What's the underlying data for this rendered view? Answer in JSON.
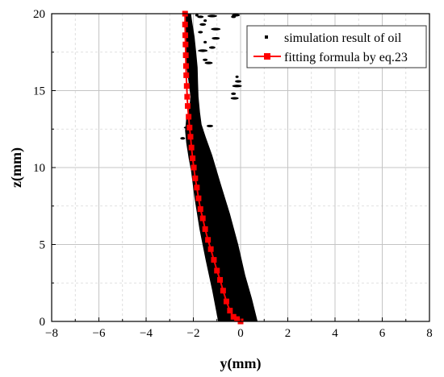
{
  "chart_data": {
    "type": "scatter",
    "xlabel": "y(mm)",
    "ylabel": "z(mm)",
    "xlim": [
      -8,
      8
    ],
    "ylim": [
      0,
      20
    ],
    "xticks": [
      -8,
      -6,
      -4,
      -2,
      0,
      2,
      4,
      6,
      8
    ],
    "yticks": [
      0,
      5,
      10,
      15,
      20
    ],
    "grid": true,
    "legend_position": "top-right",
    "colors": {
      "simulation": "#000000",
      "fitting": "#ff0000"
    },
    "series": [
      {
        "name": "simulation result of oil",
        "style": "filled-region",
        "region": {
          "left": [
            [
              -0.95,
              0.0
            ],
            [
              -1.2,
              2
            ],
            [
              -1.48,
              4
            ],
            [
              -1.74,
              6
            ],
            [
              -1.95,
              8
            ],
            [
              -2.1,
              9.8
            ],
            [
              -2.2,
              10.6
            ],
            [
              -2.3,
              11.6
            ],
            [
              -2.35,
              12.4
            ],
            [
              -2.3,
              13.2
            ],
            [
              -2.18,
              13.8
            ],
            [
              -2.12,
              14.6
            ],
            [
              -2.2,
              15.5
            ],
            [
              -2.28,
              16.5
            ],
            [
              -2.33,
              17.5
            ],
            [
              -2.37,
              18.5
            ],
            [
              -2.38,
              19.5
            ],
            [
              -2.36,
              20
            ]
          ],
          "right": [
            [
              -2.1,
              20
            ],
            [
              -2.05,
              19.5
            ],
            [
              -1.95,
              18.5
            ],
            [
              -1.88,
              17.5
            ],
            [
              -1.82,
              16.5
            ],
            [
              -1.8,
              15.5
            ],
            [
              -1.78,
              14.6
            ],
            [
              -1.72,
              13.6
            ],
            [
              -1.65,
              12.8
            ],
            [
              -1.48,
              12.0
            ],
            [
              -1.2,
              10.8
            ],
            [
              -0.85,
              9.0
            ],
            [
              -0.45,
              7.0
            ],
            [
              -0.1,
              5.0
            ],
            [
              0.2,
              3.0
            ],
            [
              0.48,
              1.5
            ],
            [
              0.72,
              0.0
            ]
          ]
        },
        "blobs": [
          [
            -1.85,
            19.9
          ],
          [
            -1.7,
            19.8
          ],
          [
            -1.2,
            19.85
          ],
          [
            -0.3,
            19.8
          ],
          [
            -0.2,
            19.9
          ],
          [
            -1.5,
            19.55
          ],
          [
            -1.6,
            19.3
          ],
          [
            -1.05,
            19.0
          ],
          [
            -1.7,
            18.8
          ],
          [
            -1.05,
            18.4
          ],
          [
            -1.5,
            18.15
          ],
          [
            -1.2,
            17.8
          ],
          [
            -1.6,
            17.6
          ],
          [
            -1.5,
            17.0
          ],
          [
            -1.35,
            16.8
          ],
          [
            -0.15,
            15.9
          ],
          [
            -0.1,
            15.6
          ],
          [
            -0.15,
            15.3
          ],
          [
            -0.3,
            14.8
          ],
          [
            -0.25,
            14.5
          ],
          [
            -1.9,
            13.1
          ],
          [
            -1.3,
            12.7
          ],
          [
            -2.2,
            12.6
          ],
          [
            -2.45,
            11.9
          ]
        ]
      },
      {
        "name": "fitting formula by eq.23",
        "style": "line-square-markers",
        "x": [
          -2.35,
          -2.35,
          -2.34,
          -2.33,
          -2.32,
          -2.31,
          -2.3,
          -2.28,
          -2.26,
          -2.24,
          -2.2,
          -2.16,
          -2.12,
          -2.08,
          -2.03,
          -1.98,
          -1.92,
          -1.85,
          -1.78,
          -1.7,
          -1.6,
          -1.5,
          -1.38,
          -1.26,
          -1.13,
          -1.0,
          -0.87,
          -0.74,
          -0.6,
          -0.45,
          -0.3,
          -0.15,
          0.0
        ],
        "y": [
          20,
          19.3,
          18.6,
          18.0,
          17.3,
          16.6,
          16.0,
          15.3,
          14.6,
          14.0,
          13.3,
          12.6,
          12.0,
          11.3,
          10.6,
          10.0,
          9.3,
          8.7,
          8.0,
          7.3,
          6.7,
          6.0,
          5.3,
          4.7,
          4.0,
          3.3,
          2.7,
          2.0,
          1.3,
          0.7,
          0.3,
          0.15,
          0.0
        ]
      }
    ]
  }
}
